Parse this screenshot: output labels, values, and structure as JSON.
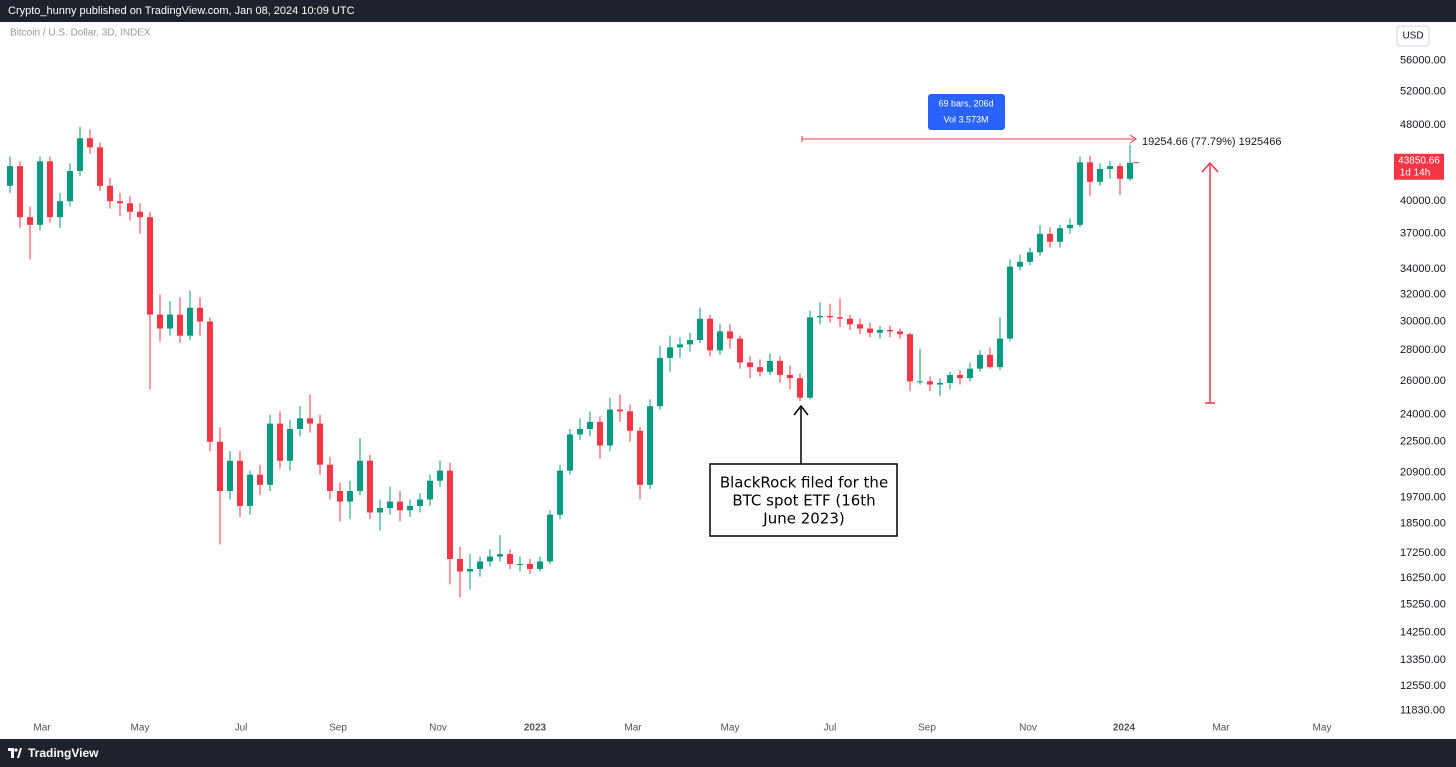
{
  "header": {
    "publisher": "Crypto_hunny published on TradingView.com, Jan 08, 2024 10:09 UTC"
  },
  "footer": {
    "brand": "TradingView"
  },
  "chart_data": {
    "type": "candlestick",
    "title": "Bitcoin / U.S. Dollar, 3D, INDEX",
    "currency": "USD",
    "countdown": "1d 14h",
    "log_scale": true,
    "up_color": "#089981",
    "down_color": "#f23645",
    "ylim": [
      11080,
      61400
    ],
    "yticks": [
      {
        "value": 56000,
        "label": "56000.00"
      },
      {
        "value": 52000,
        "label": "52000.00"
      },
      {
        "value": 48000,
        "label": "48000.00"
      },
      {
        "value": 40000,
        "label": "40000.00"
      },
      {
        "value": 37000,
        "label": "37000.00"
      },
      {
        "value": 34000,
        "label": "34000.00"
      },
      {
        "value": 32000,
        "label": "32000.00"
      },
      {
        "value": 30000,
        "label": "30000.00"
      },
      {
        "value": 28000,
        "label": "28000.00"
      },
      {
        "value": 26000,
        "label": "26000.00"
      },
      {
        "value": 24000,
        "label": "24000.00"
      },
      {
        "value": 22500,
        "label": "22500.00"
      },
      {
        "value": 20900,
        "label": "20900.00"
      },
      {
        "value": 19700,
        "label": "19700.00"
      },
      {
        "value": 18500,
        "label": "18500.00"
      },
      {
        "value": 17250,
        "label": "17250.00"
      },
      {
        "value": 16250,
        "label": "16250.00"
      },
      {
        "value": 15250,
        "label": "15250.00"
      },
      {
        "value": 14250,
        "label": "14250.00"
      },
      {
        "value": 13350,
        "label": "13350.00"
      },
      {
        "value": 12550,
        "label": "12550.00"
      },
      {
        "value": 11830,
        "label": "11830.00"
      }
    ],
    "xlim": [
      -1,
      138
    ],
    "xticks": [
      {
        "value": 3.2,
        "label": "Mar"
      },
      {
        "value": 13,
        "label": "May"
      },
      {
        "value": 23.1,
        "label": "Jul"
      },
      {
        "value": 32.8,
        "label": "Sep"
      },
      {
        "value": 42.8,
        "label": "Nov"
      },
      {
        "value": 52.5,
        "label": "2023"
      },
      {
        "value": 62.3,
        "label": "Mar"
      },
      {
        "value": 72,
        "label": "May"
      },
      {
        "value": 82,
        "label": "Jul"
      },
      {
        "value": 91.7,
        "label": "Sep"
      },
      {
        "value": 101.8,
        "label": "Nov"
      },
      {
        "value": 111.4,
        "label": "2024"
      },
      {
        "value": 121.1,
        "label": "Mar"
      },
      {
        "value": 131.2,
        "label": "May"
      }
    ],
    "ohlc": [
      [
        41500,
        44500,
        40800,
        43500
      ],
      [
        43500,
        44000,
        37500,
        38500
      ],
      [
        38500,
        39500,
        34800,
        37800
      ],
      [
        37800,
        44500,
        37300,
        44000
      ],
      [
        44000,
        44500,
        38000,
        38500
      ],
      [
        38500,
        40800,
        37500,
        40000
      ],
      [
        40000,
        43800,
        39500,
        43000
      ],
      [
        43000,
        47800,
        42500,
        46500
      ],
      [
        46500,
        47500,
        44800,
        45500
      ],
      [
        45500,
        46000,
        41000,
        41500
      ],
      [
        41500,
        42300,
        39300,
        40000
      ],
      [
        40000,
        40800,
        38600,
        39800
      ],
      [
        39800,
        40500,
        38200,
        39000
      ],
      [
        39000,
        39800,
        37000,
        38500
      ],
      [
        38500,
        39000,
        25500,
        30500
      ],
      [
        30500,
        32000,
        28600,
        29500
      ],
      [
        29500,
        31500,
        29000,
        30500
      ],
      [
        30500,
        31800,
        28500,
        29000
      ],
      [
        29000,
        32300,
        28700,
        31000
      ],
      [
        31000,
        31800,
        29000,
        30000
      ],
      [
        30000,
        30300,
        22000,
        22500
      ],
      [
        22500,
        23300,
        17600,
        20000
      ],
      [
        20000,
        22000,
        19600,
        21500
      ],
      [
        21500,
        22000,
        18800,
        19300
      ],
      [
        19300,
        21000,
        18900,
        20800
      ],
      [
        20800,
        21300,
        19800,
        20300
      ],
      [
        20300,
        24000,
        20000,
        23500
      ],
      [
        23500,
        24200,
        21100,
        21500
      ],
      [
        21500,
        23700,
        21000,
        23200
      ],
      [
        23200,
        24500,
        22800,
        23800
      ],
      [
        23800,
        25200,
        23000,
        23500
      ],
      [
        23500,
        24000,
        20800,
        21300
      ],
      [
        21300,
        21700,
        19600,
        20000
      ],
      [
        20000,
        20400,
        18600,
        19500
      ],
      [
        19500,
        20500,
        18700,
        20000
      ],
      [
        20000,
        22700,
        19800,
        21500
      ],
      [
        21500,
        21800,
        18700,
        19000
      ],
      [
        19000,
        19600,
        18200,
        19200
      ],
      [
        19200,
        20200,
        18900,
        19500
      ],
      [
        19500,
        20000,
        18600,
        19100
      ],
      [
        19100,
        19600,
        18800,
        19300
      ],
      [
        19300,
        19900,
        19000,
        19600
      ],
      [
        19600,
        20800,
        19300,
        20500
      ],
      [
        20500,
        21500,
        20200,
        21000
      ],
      [
        21000,
        21400,
        16000,
        17000
      ],
      [
        17000,
        17500,
        15500,
        16500
      ],
      [
        16500,
        17200,
        15800,
        16600
      ],
      [
        16600,
        17100,
        16300,
        16900
      ],
      [
        16900,
        17400,
        16700,
        17100
      ],
      [
        17100,
        18000,
        16900,
        17200
      ],
      [
        17200,
        17400,
        16600,
        16800
      ],
      [
        16800,
        17100,
        16500,
        16800
      ],
      [
        16800,
        17000,
        16400,
        16600
      ],
      [
        16600,
        17100,
        16500,
        16900
      ],
      [
        16900,
        19100,
        16800,
        18900
      ],
      [
        18900,
        21300,
        18700,
        21000
      ],
      [
        21000,
        23200,
        20800,
        22900
      ],
      [
        22900,
        23800,
        22600,
        23200
      ],
      [
        23200,
        24200,
        22800,
        23600
      ],
      [
        23600,
        23900,
        21600,
        22300
      ],
      [
        22300,
        25000,
        22000,
        24300
      ],
      [
        24300,
        25200,
        23600,
        24200
      ],
      [
        24200,
        24600,
        22500,
        23100
      ],
      [
        23100,
        23300,
        19600,
        20300
      ],
      [
        20300,
        24900,
        20100,
        24500
      ],
      [
        24500,
        28300,
        24300,
        27500
      ],
      [
        27500,
        29000,
        26600,
        28200
      ],
      [
        28200,
        28900,
        27500,
        28400
      ],
      [
        28400,
        29200,
        27900,
        28700
      ],
      [
        28700,
        31000,
        28500,
        30200
      ],
      [
        30200,
        30500,
        27600,
        28000
      ],
      [
        28000,
        29800,
        27700,
        29300
      ],
      [
        29300,
        29800,
        28100,
        28800
      ],
      [
        28800,
        29000,
        26800,
        27200
      ],
      [
        27200,
        27600,
        26200,
        26900
      ],
      [
        26900,
        27400,
        26300,
        26600
      ],
      [
        26600,
        27800,
        26400,
        27300
      ],
      [
        27300,
        27600,
        25900,
        26400
      ],
      [
        26400,
        27000,
        25500,
        26200
      ],
      [
        26200,
        26500,
        24800,
        25000
      ],
      [
        25000,
        30800,
        24900,
        30300
      ],
      [
        30300,
        31400,
        29800,
        30400
      ],
      [
        30400,
        31300,
        29900,
        30300
      ],
      [
        30300,
        31700,
        29600,
        30200
      ],
      [
        30200,
        30500,
        29400,
        29800
      ],
      [
        29800,
        30200,
        29100,
        29500
      ],
      [
        29500,
        29900,
        28900,
        29200
      ],
      [
        29200,
        29700,
        28800,
        29400
      ],
      [
        29400,
        29700,
        28900,
        29300
      ],
      [
        29300,
        29500,
        28800,
        29100
      ],
      [
        29100,
        29200,
        25400,
        26000
      ],
      [
        26000,
        28100,
        25800,
        26000
      ],
      [
        26000,
        26300,
        25400,
        25800
      ],
      [
        25800,
        26200,
        25100,
        25900
      ],
      [
        25900,
        26600,
        25500,
        26400
      ],
      [
        26400,
        26700,
        25800,
        26200
      ],
      [
        26200,
        27200,
        26000,
        26800
      ],
      [
        26800,
        28000,
        26600,
        27700
      ],
      [
        27700,
        28200,
        26800,
        26900
      ],
      [
        26900,
        30300,
        26700,
        28800
      ],
      [
        28800,
        34800,
        28600,
        34200
      ],
      [
        34200,
        35200,
        33900,
        34600
      ],
      [
        34600,
        35800,
        34300,
        35400
      ],
      [
        35400,
        37800,
        35100,
        37000
      ],
      [
        37000,
        37600,
        35800,
        36300
      ],
      [
        36300,
        37800,
        35800,
        37500
      ],
      [
        37500,
        38400,
        37000,
        37800
      ],
      [
        37800,
        44500,
        37600,
        43900
      ],
      [
        43900,
        44600,
        40500,
        41900
      ],
      [
        41900,
        43800,
        41500,
        43200
      ],
      [
        43200,
        44000,
        42200,
        43500
      ],
      [
        43500,
        43800,
        40600,
        42200
      ],
      [
        42200,
        45800,
        42000,
        43850.66
      ]
    ],
    "measure": {
      "bars_label": "69 bars, 206d",
      "volume_label": "Vol 3.573M",
      "change_label": "19254.66 (77.79%) 1925466"
    },
    "annotation": {
      "lines": [
        "BlackRock filed for the",
        "BTC spot ETF (16th",
        "June 2023)"
      ]
    }
  }
}
